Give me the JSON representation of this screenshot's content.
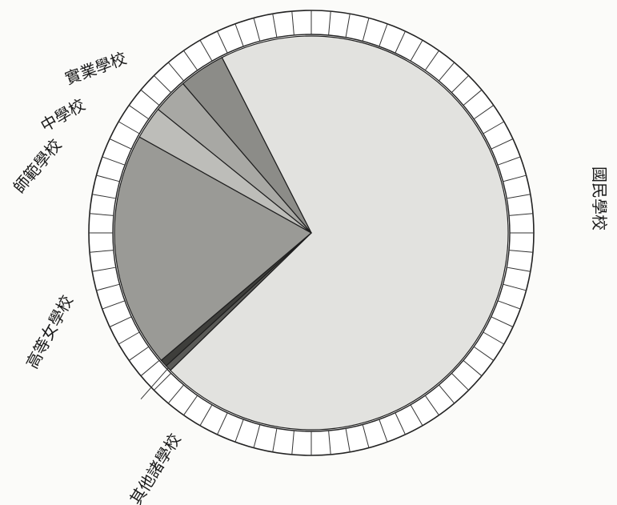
{
  "chart_data": {
    "type": "pie",
    "title": "",
    "start_angle_deg": -117,
    "slices": [
      {
        "label": "國民學校",
        "value": 70.2,
        "color": "#e2e2df"
      },
      {
        "label": "其他諸學校",
        "value": 0.5,
        "color": "#5a5a57"
      },
      {
        "label": "",
        "value": 0.6,
        "color": "#3e3e3b"
      },
      {
        "label": "高等女學校",
        "value": 19.3,
        "color": "#9a9a96"
      },
      {
        "label": "師範學校",
        "value": 2.7,
        "color": "#bdbdb9"
      },
      {
        "label": "中學校",
        "value": 2.9,
        "color": "#a8a8a4"
      },
      {
        "label": "實業學校",
        "value": 3.8,
        "color": "#8c8c88"
      }
    ],
    "ring_ticks": 72,
    "legend": "labels-outside"
  }
}
